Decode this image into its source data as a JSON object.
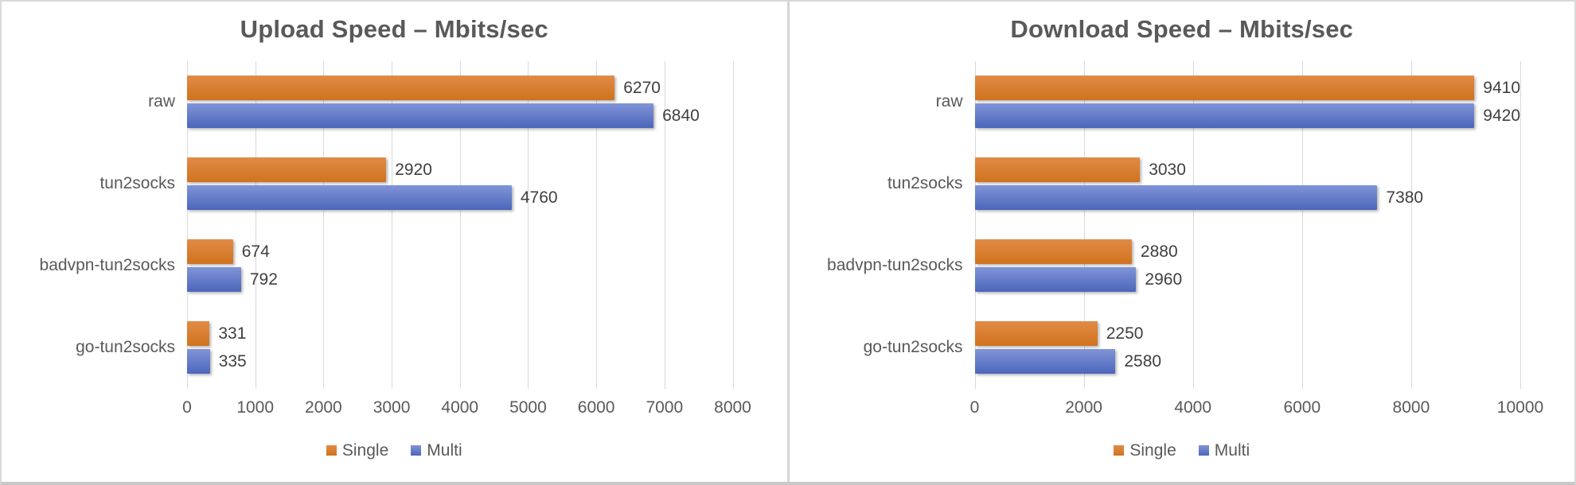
{
  "chart_data": [
    {
      "type": "bar",
      "orientation": "horizontal",
      "title": "Upload Speed – Mbits/sec",
      "categories": [
        "raw",
        "tun2socks",
        "badvpn-tun2socks",
        "go-tun2socks"
      ],
      "series": [
        {
          "name": "Single",
          "color": "#ED7D31",
          "values": [
            6270,
            2920,
            674,
            331
          ]
        },
        {
          "name": "Multi",
          "color": "#4472C4",
          "values": [
            6840,
            4760,
            792,
            335
          ]
        }
      ],
      "xlim": [
        0,
        8000
      ],
      "ticks": [
        0,
        1000,
        2000,
        3000,
        4000,
        5000,
        6000,
        7000,
        8000
      ],
      "grid": "vertical",
      "legend_position": "bottom"
    },
    {
      "type": "bar",
      "orientation": "horizontal",
      "title": "Download Speed – Mbits/sec",
      "categories": [
        "raw",
        "tun2socks",
        "badvpn-tun2socks",
        "go-tun2socks"
      ],
      "series": [
        {
          "name": "Single",
          "color": "#ED7D31",
          "values": [
            9410,
            3030,
            2880,
            2250
          ]
        },
        {
          "name": "Multi",
          "color": "#4472C4",
          "values": [
            9420,
            7380,
            2960,
            2580
          ]
        }
      ],
      "xlim": [
        0,
        10000
      ],
      "ticks": [
        0,
        2000,
        4000,
        6000,
        8000,
        10000
      ],
      "grid": "vertical",
      "legend_position": "bottom"
    }
  ],
  "colors": {
    "gridline": "#D9D9D9",
    "title_text": "#595959",
    "axis_text": "#595959",
    "value_text": "#3F3F3F",
    "border": "#D9D9D9",
    "single_series": "#ED7D31",
    "multi_series": "#4472C4"
  }
}
